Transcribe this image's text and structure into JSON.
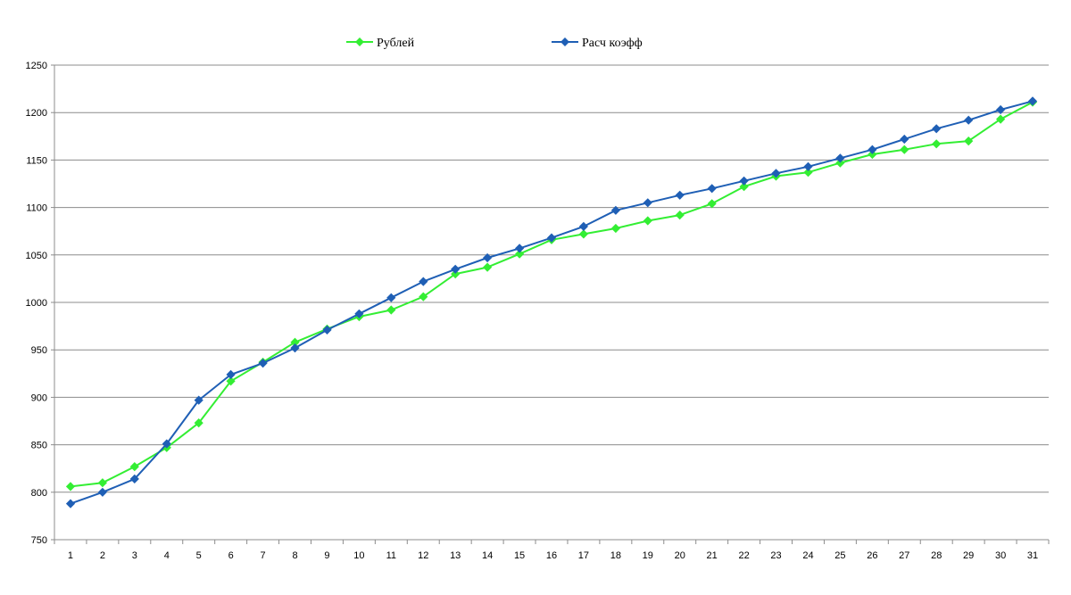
{
  "chart_data": {
    "type": "line",
    "title": "",
    "xlabel": "",
    "ylabel": "",
    "ylim": [
      750,
      1250
    ],
    "yticks": [
      750,
      800,
      850,
      900,
      950,
      1000,
      1050,
      1100,
      1150,
      1200,
      1250
    ],
    "x": [
      1,
      2,
      3,
      4,
      5,
      6,
      7,
      8,
      9,
      10,
      11,
      12,
      13,
      14,
      15,
      16,
      17,
      18,
      19,
      20,
      21,
      22,
      23,
      24,
      25,
      26,
      27,
      28,
      29,
      30,
      31
    ],
    "grid": true,
    "legend_position": "top",
    "series": [
      {
        "name": "Рублей",
        "color": "#33ee33",
        "marker": "diamond",
        "values": [
          806,
          810,
          827,
          847,
          873,
          917,
          937,
          958,
          972,
          985,
          992,
          1006,
          1030,
          1037,
          1051,
          1066,
          1072,
          1078,
          1086,
          1092,
          1104,
          1122,
          1133,
          1137,
          1147,
          1156,
          1161,
          1167,
          1170,
          1193,
          1211
        ]
      },
      {
        "name": "Расч коэфф",
        "color": "#1f5fb5",
        "marker": "diamond",
        "values": [
          788,
          800,
          814,
          851,
          897,
          924,
          936,
          952,
          971,
          988,
          1005,
          1022,
          1035,
          1047,
          1057,
          1068,
          1080,
          1097,
          1105,
          1113,
          1120,
          1128,
          1136,
          1143,
          1152,
          1161,
          1172,
          1183,
          1192,
          1203,
          1212
        ]
      }
    ]
  }
}
